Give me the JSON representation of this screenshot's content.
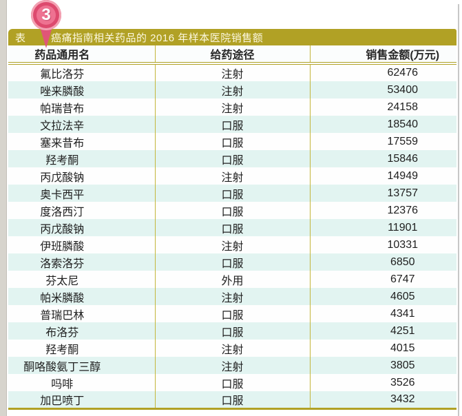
{
  "pin": {
    "number": "3"
  },
  "header": {
    "label": "表",
    "title": "癌痛指南相关药品的 2016 年样本医院销售额"
  },
  "table": {
    "columns": [
      "药品通用名",
      "给药途径",
      "销售金额(万元)"
    ],
    "rows": [
      [
        "氟比洛芬",
        "注射",
        "62476"
      ],
      [
        "唑来膦酸",
        "注射",
        "53400"
      ],
      [
        "帕瑞昔布",
        "注射",
        "24158"
      ],
      [
        "文拉法辛",
        "口服",
        "18540"
      ],
      [
        "塞来昔布",
        "口服",
        "17559"
      ],
      [
        "羟考酮",
        "口服",
        "15846"
      ],
      [
        "丙戊酸钠",
        "注射",
        "14949"
      ],
      [
        "奥卡西平",
        "口服",
        "13757"
      ],
      [
        "度洛西汀",
        "口服",
        "12376"
      ],
      [
        "丙戊酸钠",
        "口服",
        "11901"
      ],
      [
        "伊班膦酸",
        "注射",
        "10331"
      ],
      [
        "洛索洛芬",
        "口服",
        "6850"
      ],
      [
        "芬太尼",
        "外用",
        "6747"
      ],
      [
        "帕米膦酸",
        "注射",
        "4605"
      ],
      [
        "普瑞巴林",
        "口服",
        "4341"
      ],
      [
        "布洛芬",
        "口服",
        "4251"
      ],
      [
        "羟考酮",
        "注射",
        "4015"
      ],
      [
        "酮咯酸氨丁三醇",
        "注射",
        "3805"
      ],
      [
        "吗啡",
        "口服",
        "3526"
      ],
      [
        "加巴喷丁",
        "口服",
        "3432"
      ]
    ]
  },
  "colors": {
    "title_bar": "#b1a125",
    "stripe_row": "#e2f4f1",
    "separator": "#c3b53a",
    "pin_pink": "#ee7291",
    "pin_ring": "#dd4a6e",
    "title_text": "#fcf8e0"
  },
  "chart_data": {
    "type": "table",
    "title": "癌痛指南相关药品的 2016 年样本医院销售额",
    "columns": [
      "药品通用名",
      "给药途径",
      "销售金额(万元)"
    ],
    "rows": [
      {
        "drug": "氟比洛芬",
        "route": "注射",
        "amount": 62476
      },
      {
        "drug": "唑来膦酸",
        "route": "注射",
        "amount": 53400
      },
      {
        "drug": "帕瑞昔布",
        "route": "注射",
        "amount": 24158
      },
      {
        "drug": "文拉法辛",
        "route": "口服",
        "amount": 18540
      },
      {
        "drug": "塞来昔布",
        "route": "口服",
        "amount": 17559
      },
      {
        "drug": "羟考酮",
        "route": "口服",
        "amount": 15846
      },
      {
        "drug": "丙戊酸钠",
        "route": "注射",
        "amount": 14949
      },
      {
        "drug": "奥卡西平",
        "route": "口服",
        "amount": 13757
      },
      {
        "drug": "度洛西汀",
        "route": "口服",
        "amount": 12376
      },
      {
        "drug": "丙戊酸钠",
        "route": "口服",
        "amount": 11901
      },
      {
        "drug": "伊班膦酸",
        "route": "注射",
        "amount": 10331
      },
      {
        "drug": "洛索洛芬",
        "route": "口服",
        "amount": 6850
      },
      {
        "drug": "芬太尼",
        "route": "外用",
        "amount": 6747
      },
      {
        "drug": "帕米膦酸",
        "route": "注射",
        "amount": 4605
      },
      {
        "drug": "普瑞巴林",
        "route": "口服",
        "amount": 4341
      },
      {
        "drug": "布洛芬",
        "route": "口服",
        "amount": 4251
      },
      {
        "drug": "羟考酮",
        "route": "注射",
        "amount": 4015
      },
      {
        "drug": "酮咯酸氨丁三醇",
        "route": "注射",
        "amount": 3805
      },
      {
        "drug": "吗啡",
        "route": "口服",
        "amount": 3526
      },
      {
        "drug": "加巴喷丁",
        "route": "口服",
        "amount": 3432
      }
    ]
  }
}
